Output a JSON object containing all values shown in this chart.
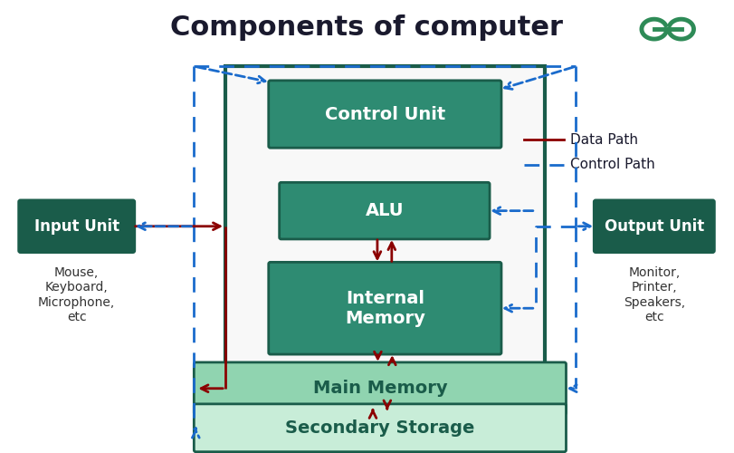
{
  "title": "Components of computer",
  "title_color": "#1a1a2e",
  "bg_color": "#ffffff",
  "dark_teal": "#1a5c4a",
  "mid_teal": "#2e8b72",
  "light_teal": "#90d4b0",
  "lighter_teal": "#c8edd8",
  "red": "#8b0000",
  "blue_dashed": "#1a6bcc",
  "legend_data_path": "Data Path",
  "legend_control_path": "Control Path",
  "labels": {
    "control_unit": "Control Unit",
    "alu": "ALU",
    "internal_memory": "Internal\nMemory",
    "main_memory": "Main Memory",
    "secondary_storage": "Secondary Storage",
    "input_unit": "Input Unit",
    "output_unit": "Output Unit"
  },
  "sublabels": {
    "input": "Mouse,\nKeyboard,\nMicrophone,\netc",
    "output": "Monitor,\nPrinter,\nSpeakers,\netc"
  }
}
